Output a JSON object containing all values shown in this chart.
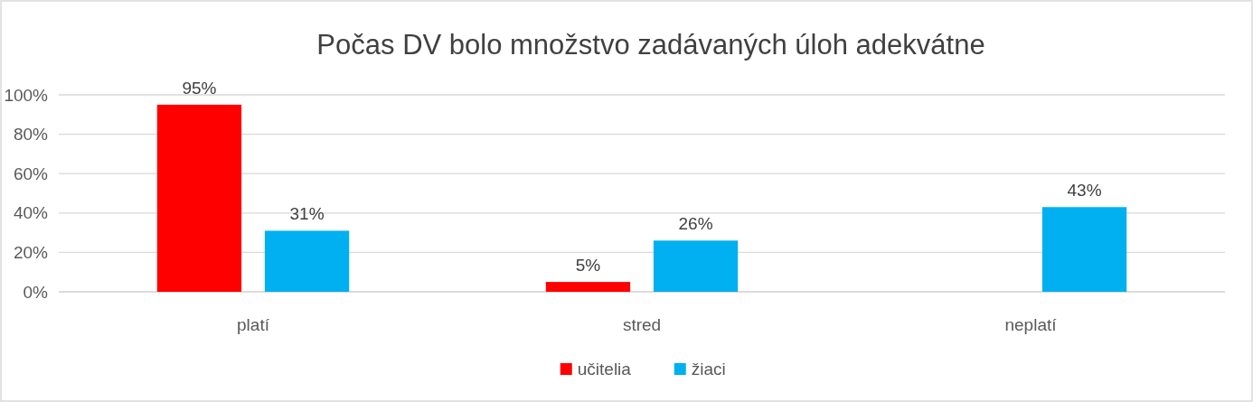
{
  "chart_data": {
    "type": "bar",
    "title": "Počas DV bolo množstvo zadávaných úloh adekvátne",
    "categories": [
      "platí",
      "stred",
      "neplatí"
    ],
    "series": [
      {
        "name": "učitelia",
        "color": "#ff0000",
        "values": [
          95,
          5,
          null
        ],
        "value_labels": [
          "95%",
          "5%",
          null
        ]
      },
      {
        "name": "žiaci",
        "color": "#00b0f0",
        "values": [
          31,
          26,
          43
        ],
        "value_labels": [
          "31%",
          "26%",
          "43%"
        ]
      }
    ],
    "ylim": [
      0,
      100
    ],
    "yticks": [
      {
        "value": 0,
        "label": "0%"
      },
      {
        "value": 20,
        "label": "20%"
      },
      {
        "value": 40,
        "label": "40%"
      },
      {
        "value": 60,
        "label": "60%"
      },
      {
        "value": 80,
        "label": "80%"
      },
      {
        "value": 100,
        "label": "100%"
      }
    ],
    "grid": "y",
    "legend": "bottom"
  }
}
